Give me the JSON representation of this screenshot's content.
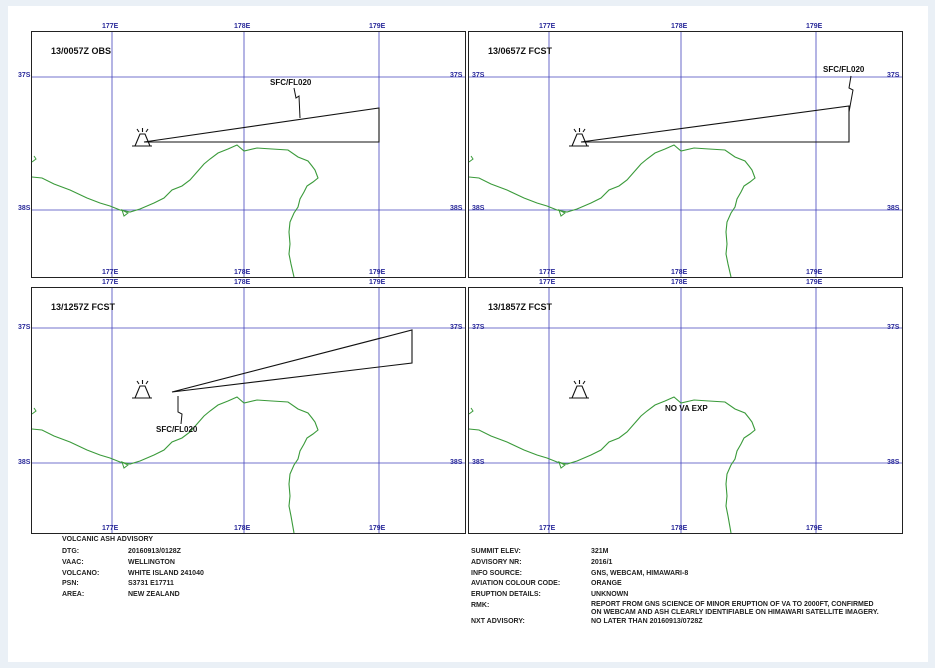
{
  "panels": [
    {
      "title": "13/0057Z OBS",
      "label": "SFC/FL020"
    },
    {
      "title": "13/0657Z FCST",
      "label": "SFC/FL020"
    },
    {
      "title": "13/1257Z FCST",
      "label": "SFC/FL020"
    },
    {
      "title": "13/1857Z FCST",
      "label": "NO VA EXP"
    }
  ],
  "axes": {
    "lon": [
      "177E",
      "178E",
      "179E"
    ],
    "lat": [
      "37S",
      "38S"
    ]
  },
  "colors": {
    "coast": "#3a9a3a",
    "grid": "#4444bb",
    "ash": "#111111"
  },
  "icon": "volcano-icon",
  "advisory": {
    "heading": "VOLCANIC ASH ADVISORY",
    "left": [
      {
        "k": "DTG:",
        "v": "20160913/0128Z"
      },
      {
        "k": "VAAC:",
        "v": "WELLINGTON"
      },
      {
        "k": "VOLCANO:",
        "v": "WHITE ISLAND 241040"
      },
      {
        "k": "PSN:",
        "v": "S3731 E17711"
      },
      {
        "k": "AREA:",
        "v": "NEW ZEALAND"
      }
    ],
    "right": [
      {
        "k": "SUMMIT ELEV:",
        "v": "321M"
      },
      {
        "k": "ADVISORY NR:",
        "v": "2016/1"
      },
      {
        "k": "INFO SOURCE:",
        "v": "GNS, WEBCAM, HIMAWARI-8"
      },
      {
        "k": "AVIATION COLOUR CODE:",
        "v": "ORANGE"
      },
      {
        "k": "ERUPTION DETAILS:",
        "v": "UNKNOWN"
      },
      {
        "k": "RMK:",
        "v": "REPORT FROM GNS SCIENCE OF MINOR ERUPTION OF VA TO 2000FT, CONFIRMED ON WEBCAM AND ASH CLEARLY IDENTIFIABLE ON HIMAWARI SATELLITE IMAGERY."
      },
      {
        "k": "NXT ADVISORY:",
        "v": "NO LATER THAN 20160913/0728Z"
      }
    ]
  }
}
